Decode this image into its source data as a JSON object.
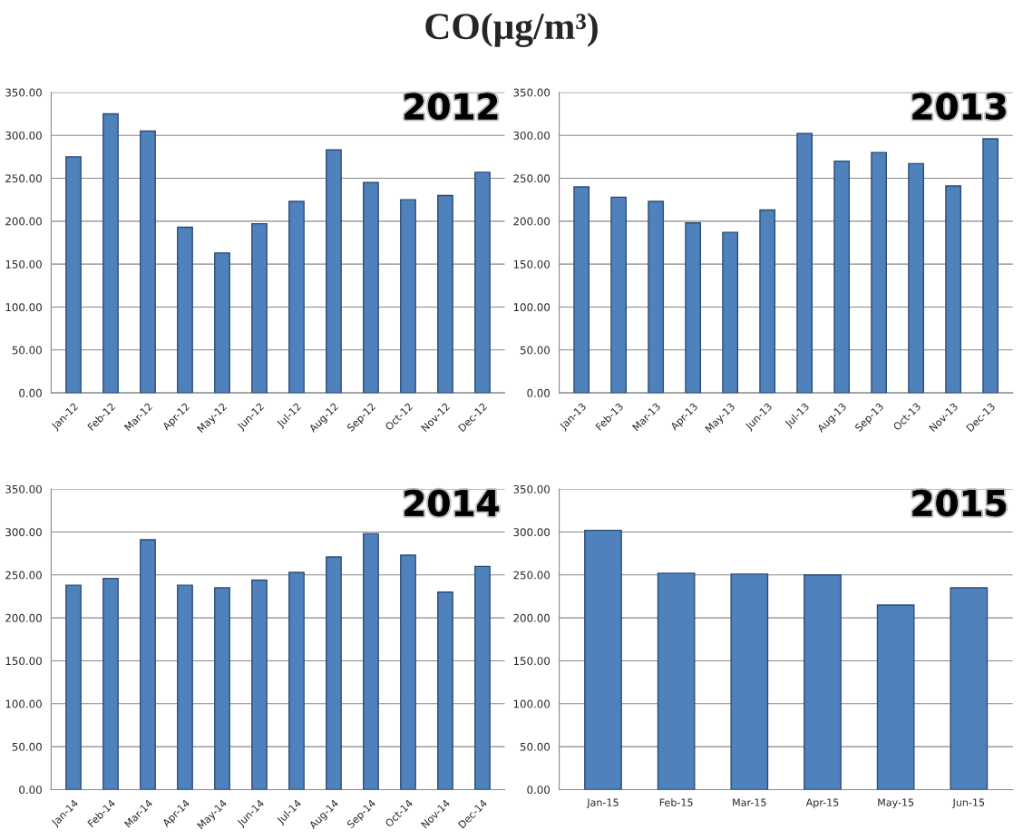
{
  "chart_data": [
    {
      "type": "bar",
      "title": "2012",
      "annotations": [
        "CO(μg/m³)"
      ],
      "categories": [
        "Jan-12",
        "Feb-12",
        "Mar-12",
        "Apr-12",
        "May-12",
        "Jun-12",
        "Jul-12",
        "Aug-12",
        "Sep-12",
        "Oct-12",
        "Nov-12",
        "Dec-12"
      ],
      "values": [
        275,
        325,
        305,
        193,
        163,
        197,
        223,
        283,
        245,
        225,
        230,
        257
      ],
      "color": "#4f81bd",
      "ylim": [
        0,
        350
      ],
      "yticks": [
        {
          "value": 0,
          "label": "0.00"
        },
        {
          "value": 50,
          "label": "50.00"
        },
        {
          "value": 100,
          "label": "100.00"
        },
        {
          "value": 150,
          "label": "150.00"
        },
        {
          "value": 200,
          "label": "200.00"
        },
        {
          "value": 250,
          "label": "250.00"
        },
        {
          "value": 300,
          "label": "300.00"
        },
        {
          "value": 350,
          "label": "350.00"
        }
      ],
      "grid": "y"
    },
    {
      "type": "bar",
      "title": "2013",
      "categories": [
        "Jan-13",
        "Feb-13",
        "Mar-13",
        "Apr-13",
        "May-13",
        "Jun-13",
        "Jul-13",
        "Aug-13",
        "Sep-13",
        "Oct-13",
        "Nov-13",
        "Dec-13"
      ],
      "values": [
        240,
        228,
        223,
        198,
        187,
        213,
        302,
        270,
        280,
        267,
        241,
        296
      ],
      "color": "#4f81bd",
      "ylim": [
        0,
        350
      ],
      "yticks": [
        {
          "value": 0,
          "label": "0.00"
        },
        {
          "value": 50,
          "label": "50.00"
        },
        {
          "value": 100,
          "label": "100.00"
        },
        {
          "value": 150,
          "label": "150.00"
        },
        {
          "value": 200,
          "label": "200.00"
        },
        {
          "value": 250,
          "label": "250.00"
        },
        {
          "value": 300,
          "label": "300.00"
        },
        {
          "value": 350,
          "label": "350.00"
        }
      ],
      "grid": "y"
    },
    {
      "type": "bar",
      "title": "2014",
      "categories": [
        "Jan-14",
        "Feb-14",
        "Mar-14",
        "Apr-14",
        "May-14",
        "Jun-14",
        "Jul-14",
        "Aug-14",
        "Sep-14",
        "Oct-14",
        "Nov-14",
        "Dec-14"
      ],
      "values": [
        238,
        246,
        291,
        238,
        235,
        244,
        253,
        271,
        298,
        273,
        230,
        260
      ],
      "color": "#4f81bd",
      "ylim": [
        0,
        350
      ],
      "yticks": [
        {
          "value": 0,
          "label": "0.00"
        },
        {
          "value": 50,
          "label": "50.00"
        },
        {
          "value": 100,
          "label": "100.00"
        },
        {
          "value": 150,
          "label": "150.00"
        },
        {
          "value": 200,
          "label": "200.00"
        },
        {
          "value": 250,
          "label": "250.00"
        },
        {
          "value": 300,
          "label": "300.00"
        },
        {
          "value": 350,
          "label": "350.00"
        }
      ],
      "grid": "y"
    },
    {
      "type": "bar",
      "title": "2015",
      "categories": [
        "Jan-15",
        "Feb-15",
        "Mar-15",
        "Apr-15",
        "May-15",
        "Jun-15"
      ],
      "values": [
        302,
        252,
        251,
        250,
        215,
        235
      ],
      "color": "#4f81bd",
      "ylim": [
        0,
        350
      ],
      "yticks": [
        {
          "value": 0,
          "label": "0.00"
        },
        {
          "value": 50,
          "label": "50.00"
        },
        {
          "value": 100,
          "label": "100.00"
        },
        {
          "value": 150,
          "label": "150.00"
        },
        {
          "value": 200,
          "label": "200.00"
        },
        {
          "value": 250,
          "label": "250.00"
        },
        {
          "value": 300,
          "label": "300.00"
        },
        {
          "value": 350,
          "label": "350.00"
        }
      ],
      "grid": "y"
    }
  ]
}
